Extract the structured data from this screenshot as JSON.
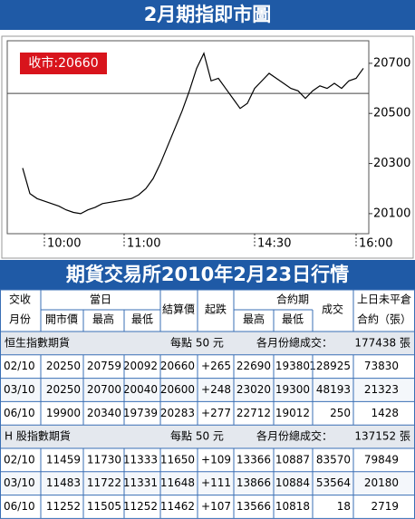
{
  "chart_data": {
    "type": "line",
    "title": "2月期指即市圖",
    "annotation": "收市:20660",
    "categories": [
      null,
      null,
      null,
      "10:00",
      null,
      null,
      null,
      null,
      null,
      null,
      null,
      null,
      null,
      null,
      "11:00",
      null,
      null,
      null,
      null,
      null,
      null,
      null,
      null,
      null,
      null,
      null,
      null,
      null,
      null,
      null,
      null,
      null,
      "14:30",
      null,
      null,
      null,
      null,
      null,
      null,
      null,
      null,
      null,
      null,
      null,
      null,
      null,
      "16:00",
      null
    ],
    "values": [
      20282,
      20180,
      20160,
      20150,
      20140,
      20130,
      20115,
      20105,
      20100,
      20115,
      20125,
      20140,
      20145,
      20150,
      20155,
      20160,
      20175,
      20200,
      20240,
      20300,
      20370,
      20440,
      20510,
      20590,
      20680,
      20740,
      20630,
      20640,
      20600,
      20560,
      20520,
      20540,
      20600,
      20630,
      20660,
      20640,
      20620,
      20600,
      20590,
      20560,
      20590,
      20610,
      20600,
      20620,
      20600,
      20630,
      20640,
      20680
    ],
    "color": "#000000",
    "ylim": [
      20020,
      20790
    ],
    "yticks": [
      20100,
      20300,
      20500,
      20700
    ],
    "reference_line": 20580,
    "grid": false
  },
  "table": {
    "title": "期貨交易所2010年2月23日行情",
    "header": [
      "交收",
      "月份",
      "當日",
      "開市價",
      "最高",
      "最低",
      "結算價",
      "起跌",
      "合約期",
      "最高",
      "最低",
      "成交",
      "上日未平倉",
      "合約（張）"
    ],
    "sections": [
      {
        "name": "恒生指數期貨",
        "unit": "每點 50 元",
        "total_label": "各月份總成交：",
        "total": "177438 張",
        "rows": [
          [
            "02/10",
            "20250",
            "20759",
            "20092",
            "20660",
            "+265",
            "22690",
            "19380",
            "128925",
            "73830"
          ],
          [
            "03/10",
            "20250",
            "20700",
            "20040",
            "20600",
            "+248",
            "23020",
            "19300",
            "48193",
            "21323"
          ],
          [
            "06/10",
            "19900",
            "20340",
            "19739",
            "20283",
            "+277",
            "22712",
            "19012",
            "250",
            "1428"
          ]
        ]
      },
      {
        "name": "H 股指數期貨",
        "unit": "每點 50 元",
        "total_label": "各月份總成交：",
        "total": "137152 張",
        "rows": [
          [
            "02/10",
            "11459",
            "11730",
            "11333",
            "11650",
            "+109",
            "13366",
            "10887",
            "83570",
            "79849"
          ],
          [
            "03/10",
            "11483",
            "11722",
            "11331",
            "11648",
            "+111",
            "13866",
            "10884",
            "53564",
            "20180"
          ],
          [
            "06/10",
            "11252",
            "11505",
            "11252",
            "11462",
            "+107",
            "13566",
            "10818",
            "18",
            "2719"
          ]
        ]
      }
    ]
  }
}
